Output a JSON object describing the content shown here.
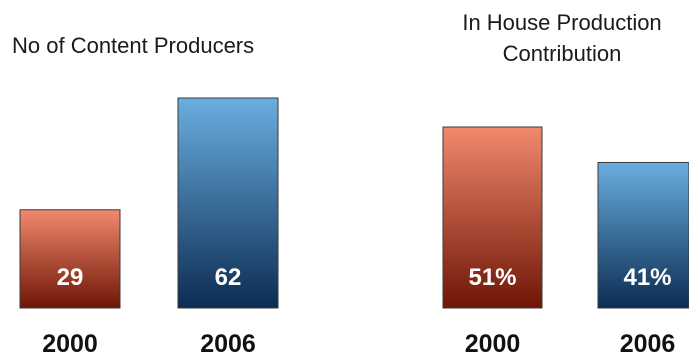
{
  "chart_data": [
    {
      "type": "bar",
      "title": "No of Content Producers",
      "categories": [
        "2000",
        "2006"
      ],
      "values": [
        29,
        62
      ],
      "value_labels": [
        "29",
        "62"
      ],
      "colors": [
        "red-gradient",
        "blue-gradient"
      ],
      "ylim": [
        0,
        62
      ],
      "grid": false,
      "legend": "none"
    },
    {
      "type": "bar",
      "title_lines": [
        "In House Production",
        "Contribution"
      ],
      "categories": [
        "2000",
        "2006"
      ],
      "values": [
        51,
        41
      ],
      "unit": "%",
      "value_labels": [
        "51%",
        "41%"
      ],
      "colors": [
        "red-gradient",
        "blue-gradient"
      ],
      "ylim": [
        0,
        51
      ],
      "grid": false,
      "legend": "none"
    }
  ],
  "palette": {
    "red_top": "#f2896e",
    "red_bottom": "#6e1606",
    "blue_top": "#6aaee0",
    "blue_bottom": "#0c2c52"
  }
}
